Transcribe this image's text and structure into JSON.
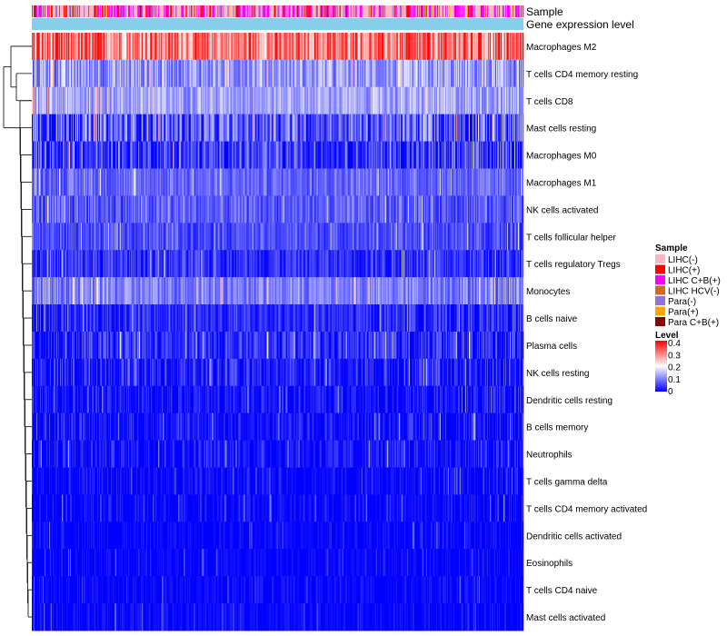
{
  "chart_data": {
    "type": "heatmap",
    "annotations": {
      "sample_label": "Sample",
      "gene_label": "Gene expression level"
    },
    "rows": [
      {
        "label": "Macrophages M2",
        "base": 0.3,
        "spread": 0.1
      },
      {
        "label": "T cells CD4 memory resting",
        "base": 0.12,
        "spread": 0.07
      },
      {
        "label": "T cells CD8",
        "base": 0.13,
        "spread": 0.05
      },
      {
        "label": "Mast cells resting",
        "base": 0.07,
        "spread": 0.09
      },
      {
        "label": "Macrophages M0",
        "base": 0.04,
        "spread": 0.08
      },
      {
        "label": "Macrophages M1",
        "base": 0.08,
        "spread": 0.04
      },
      {
        "label": "NK cells activated",
        "base": 0.07,
        "spread": 0.05
      },
      {
        "label": "T cells follicular helper",
        "base": 0.06,
        "spread": 0.04
      },
      {
        "label": "T cells regulatory  Tregs",
        "base": 0.04,
        "spread": 0.05
      },
      {
        "label": "Monocytes",
        "base": 0.1,
        "spread": 0.05
      },
      {
        "label": "B cells naive",
        "base": 0.03,
        "spread": 0.05
      },
      {
        "label": "Plasma cells",
        "base": 0.03,
        "spread": 0.06
      },
      {
        "label": "NK cells resting",
        "base": 0.02,
        "spread": 0.06
      },
      {
        "label": "Dendritic cells resting",
        "base": 0.01,
        "spread": 0.05
      },
      {
        "label": "B cells memory",
        "base": 0.01,
        "spread": 0.05
      },
      {
        "label": "Neutrophils",
        "base": 0.01,
        "spread": 0.05
      },
      {
        "label": "T cells gamma delta",
        "base": 0.0,
        "spread": 0.04
      },
      {
        "label": "T cells CD4 memory activated",
        "base": 0.0,
        "spread": 0.04
      },
      {
        "label": "Dendritic cells activated",
        "base": 0.0,
        "spread": 0.03
      },
      {
        "label": "Eosinophils",
        "base": 0.0,
        "spread": 0.03
      },
      {
        "label": "T cells CD4 naive",
        "base": 0.0,
        "spread": 0.03
      },
      {
        "label": "Mast cells activated",
        "base": 0.0,
        "spread": 0.03
      }
    ],
    "columns": 540,
    "sample_legend": {
      "title": "Sample",
      "entries": [
        {
          "label": "LIHC(-)",
          "color": "#FFB6C1"
        },
        {
          "label": "LIHC(+)",
          "color": "#FF0000"
        },
        {
          "label": "LIHC C+B(+)",
          "color": "#FF00FF"
        },
        {
          "label": "LIHC HCV(-)",
          "color": "#D2691E"
        },
        {
          "label": "Para(-)",
          "color": "#9370DB"
        },
        {
          "label": "Para(+)",
          "color": "#FFA500"
        },
        {
          "label": "Para C+B(+)",
          "color": "#8B0000"
        }
      ]
    },
    "gene_bar_color": "#87CEEB",
    "level_legend": {
      "title": "Level",
      "ticks": [
        0.4,
        0.3,
        0.2,
        0.1,
        0
      ],
      "range": [
        0,
        0.4
      ],
      "colors": [
        "#0000FF",
        "#FFFFFF",
        "#FF0000"
      ]
    }
  }
}
